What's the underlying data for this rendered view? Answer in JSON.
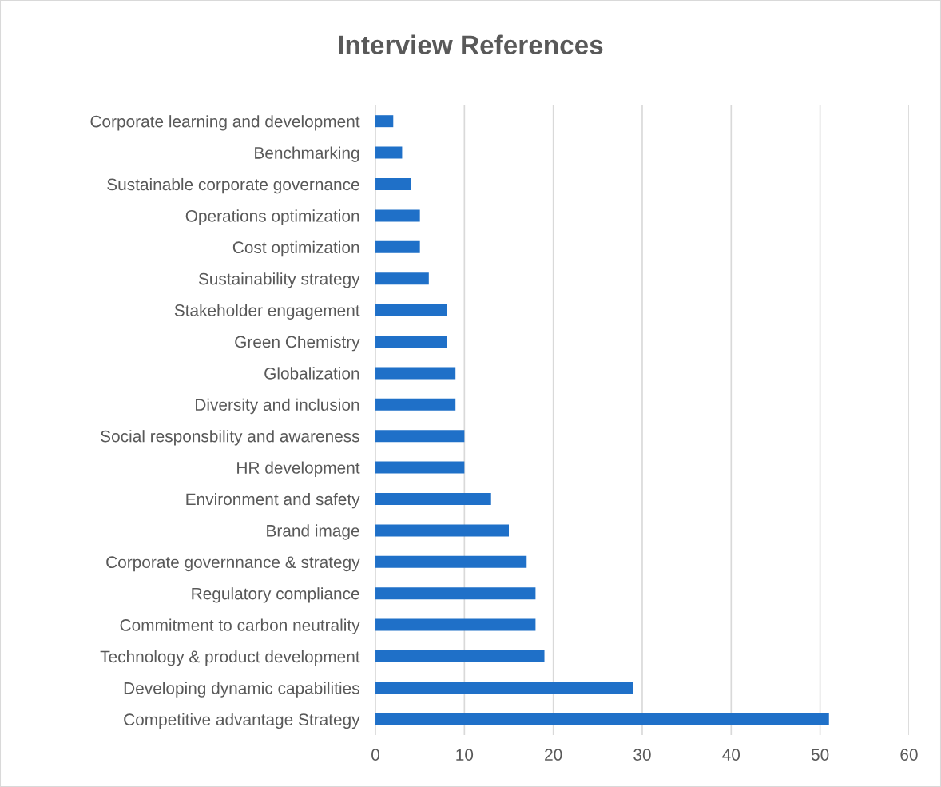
{
  "chart_data": {
    "type": "bar",
    "orientation": "horizontal",
    "title": "Interview References",
    "categories": [
      "Corporate learning and development",
      "Benchmarking",
      "Sustainable corporate governance",
      "Operations optimization",
      "Cost optimization",
      "Sustainability strategy",
      "Stakeholder engagement",
      "Green Chemistry",
      "Globalization",
      "Diversity and inclusion",
      "Social responsbility and awareness",
      "HR development",
      "Environment and safety",
      "Brand image",
      "Corporate governnance & strategy",
      "Regulatory compliance",
      "Commitment to carbon neutrality",
      "Technology & product development",
      "Developing dynamic capabilities",
      "Competitive advantage Strategy"
    ],
    "values": [
      2,
      3,
      4,
      5,
      5,
      6,
      8,
      8,
      9,
      9,
      10,
      10,
      13,
      15,
      17,
      18,
      18,
      19,
      29,
      51
    ],
    "color": "#1f70c8",
    "xlim": [
      0,
      60
    ],
    "xticks": [
      0,
      10,
      20,
      30,
      40,
      50,
      60
    ],
    "grid": "x",
    "legend": false
  }
}
